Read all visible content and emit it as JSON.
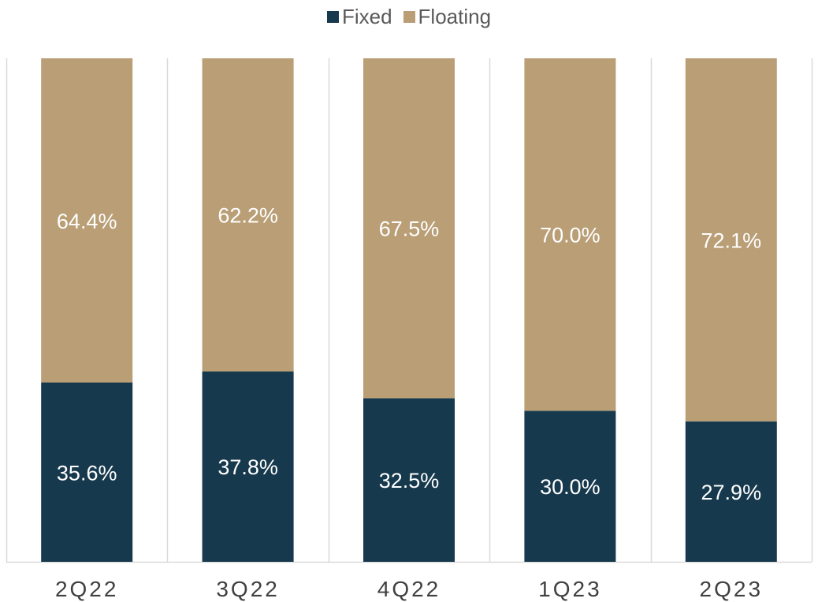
{
  "chart_data": {
    "type": "bar",
    "stacked": true,
    "normalized_percent": true,
    "categories": [
      "2Q22",
      "3Q22",
      "4Q22",
      "1Q23",
      "2Q23"
    ],
    "series": [
      {
        "name": "Fixed",
        "values": [
          35.6,
          37.8,
          32.5,
          30.0,
          27.9
        ],
        "labels": [
          "35.6%",
          "37.8%",
          "32.5%",
          "30.0%",
          "27.9%"
        ],
        "color": "#17394D"
      },
      {
        "name": "Floating",
        "values": [
          64.4,
          62.2,
          67.5,
          70.0,
          72.1
        ],
        "labels": [
          "64.4%",
          "62.2%",
          "67.5%",
          "70.0%",
          "72.1%"
        ],
        "color": "#B99E76"
      }
    ],
    "ylim": [
      0,
      100
    ],
    "grid": "vertical separators between categories",
    "legend": "top-center",
    "colors": {
      "axis": "#D9D9D9",
      "label_text": "#FFFFFF",
      "category_text": "#404040"
    }
  }
}
